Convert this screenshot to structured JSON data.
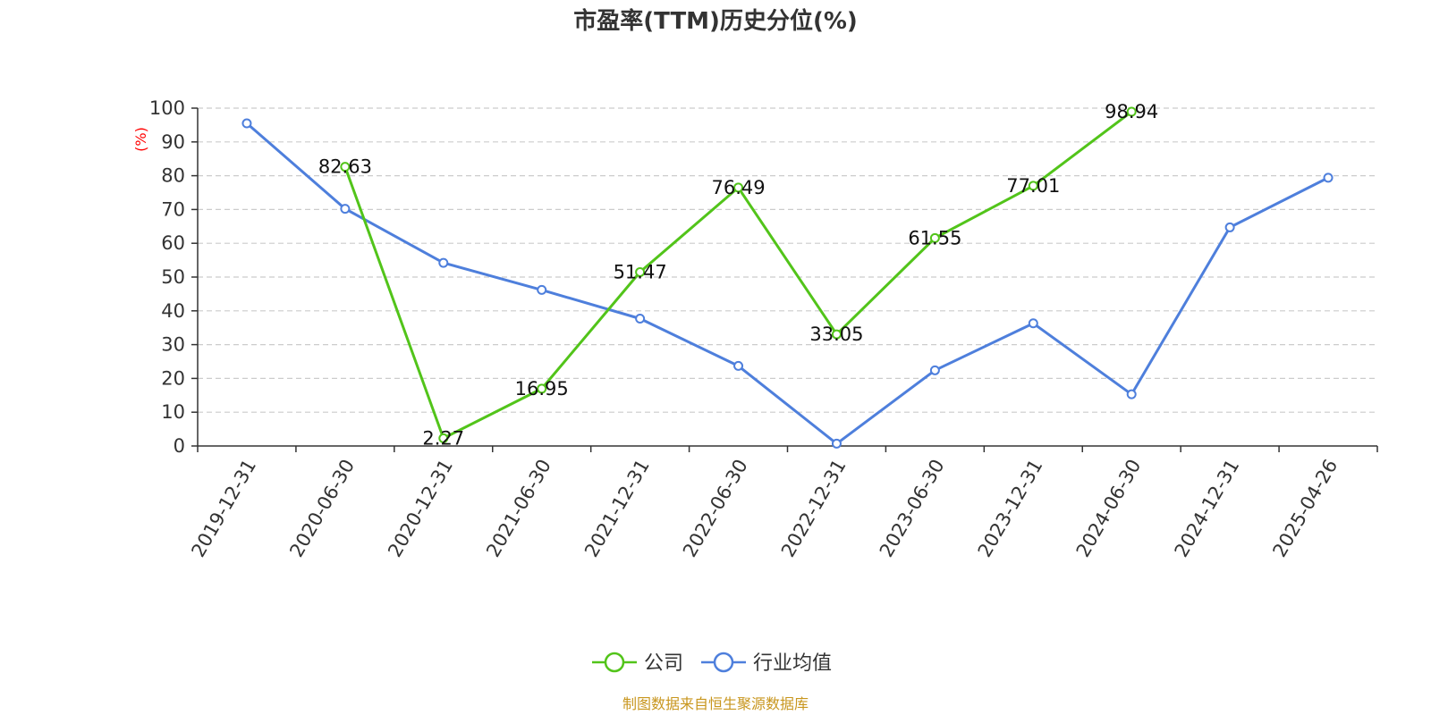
{
  "chart_data": {
    "type": "line",
    "title": "市盈率(TTM)历史分位(%)",
    "ylabel": "(%)",
    "xlabel": "",
    "categories": [
      "2019-12-31",
      "2020-06-30",
      "2020-12-31",
      "2021-06-30",
      "2021-12-31",
      "2022-06-30",
      "2022-12-31",
      "2023-06-30",
      "2023-12-31",
      "2024-06-30",
      "2024-12-31",
      "2025-04-26"
    ],
    "ylim": [
      0,
      100
    ],
    "yticks": [
      0,
      10,
      20,
      30,
      40,
      50,
      60,
      70,
      80,
      90,
      100
    ],
    "grid": "horizontal-dashed",
    "legend_position": "bottom-center",
    "series": [
      {
        "name": "公司",
        "color": "#52c41a",
        "show_labels": true,
        "values": [
          null,
          82.63,
          2.27,
          16.95,
          51.47,
          76.49,
          33.05,
          61.55,
          77.01,
          98.94,
          null,
          null
        ]
      },
      {
        "name": "行业均值",
        "color": "#4e7fdc",
        "show_labels": false,
        "values": [
          95.5,
          70.2,
          54.2,
          46.2,
          37.7,
          23.7,
          0.7,
          22.4,
          36.3,
          15.3,
          64.7,
          79.4
        ]
      }
    ]
  },
  "source_note": "制图数据来自恒生聚源数据库",
  "colors": {
    "axis": "#333333",
    "grid": "#cccccc",
    "unit_label": "#ff0000",
    "source_note": "#c8961e"
  }
}
